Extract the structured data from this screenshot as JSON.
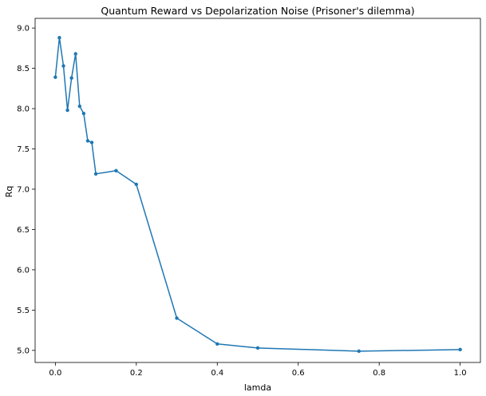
{
  "chart_data": {
    "type": "line",
    "title": "Quantum Reward vs Depolarization Noise (Prisoner's dilemma)",
    "xlabel": "lamda",
    "ylabel": "Rq",
    "xlim": [
      -0.05,
      1.05
    ],
    "ylim": [
      4.85,
      9.12
    ],
    "xticks": [
      0.0,
      0.2,
      0.4,
      0.6,
      0.8,
      1.0
    ],
    "xtick_labels": [
      "0.0",
      "0.2",
      "0.4",
      "0.6",
      "0.8",
      "1.0"
    ],
    "yticks": [
      5.0,
      5.5,
      6.0,
      6.5,
      7.0,
      7.5,
      8.0,
      8.5,
      9.0
    ],
    "ytick_labels": [
      "5.0",
      "5.5",
      "6.0",
      "6.5",
      "7.0",
      "7.5",
      "8.0",
      "8.5",
      "9.0"
    ],
    "grid": false,
    "series": [
      {
        "color": "#1f77b4",
        "marker": "dot",
        "x": [
          0.0,
          0.01,
          0.02,
          0.03,
          0.04,
          0.05,
          0.06,
          0.07,
          0.08,
          0.09,
          0.1,
          0.15,
          0.2,
          0.3,
          0.4,
          0.5,
          0.75,
          1.0
        ],
        "y": [
          8.39,
          8.88,
          8.53,
          7.98,
          8.38,
          8.68,
          8.03,
          7.94,
          7.6,
          7.58,
          7.19,
          7.23,
          7.06,
          5.4,
          5.08,
          5.03,
          4.99,
          5.01
        ]
      }
    ]
  }
}
